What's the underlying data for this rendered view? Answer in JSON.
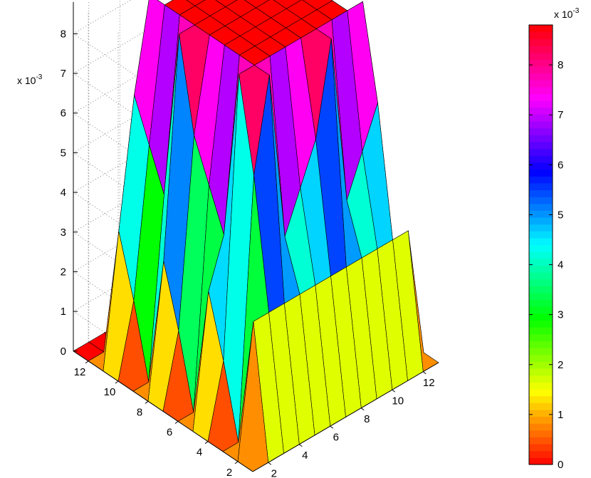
{
  "chart_data": {
    "type": "surface",
    "colormap": "hsv (red → orange → yellow → green → cyan → blue → magenta → red)",
    "grid": true,
    "z_multiplier": "x 10",
    "z_multiplier_exp": "-3",
    "x_ticks": [
      "2",
      "4",
      "6",
      "8",
      "10",
      "12"
    ],
    "y_ticks": [
      "2",
      "4",
      "6",
      "8",
      "10",
      "12"
    ],
    "z_ticks": [
      "0",
      "1",
      "2",
      "3",
      "4",
      "5",
      "6",
      "7",
      "8"
    ],
    "xlim": [
      1,
      13
    ],
    "ylim": [
      1,
      13
    ],
    "zlim": [
      0,
      0.0088
    ],
    "surface": {
      "description": "13x13 grid; flat plateau at ~0.0088 for indices 4..10, zero border, graded ramp on the edges",
      "plateau_value": 0.0088,
      "edge_profile": [
        0.0,
        0.0018,
        0.0033,
        0.0045,
        0.0055,
        0.0065,
        0.0088
      ]
    },
    "colorbar": {
      "multiplier": "x 10",
      "multiplier_exp": "-3",
      "ticks": [
        "0",
        "1",
        "2",
        "3",
        "4",
        "5",
        "6",
        "7",
        "8"
      ],
      "range": [
        0,
        0.0088
      ]
    }
  }
}
